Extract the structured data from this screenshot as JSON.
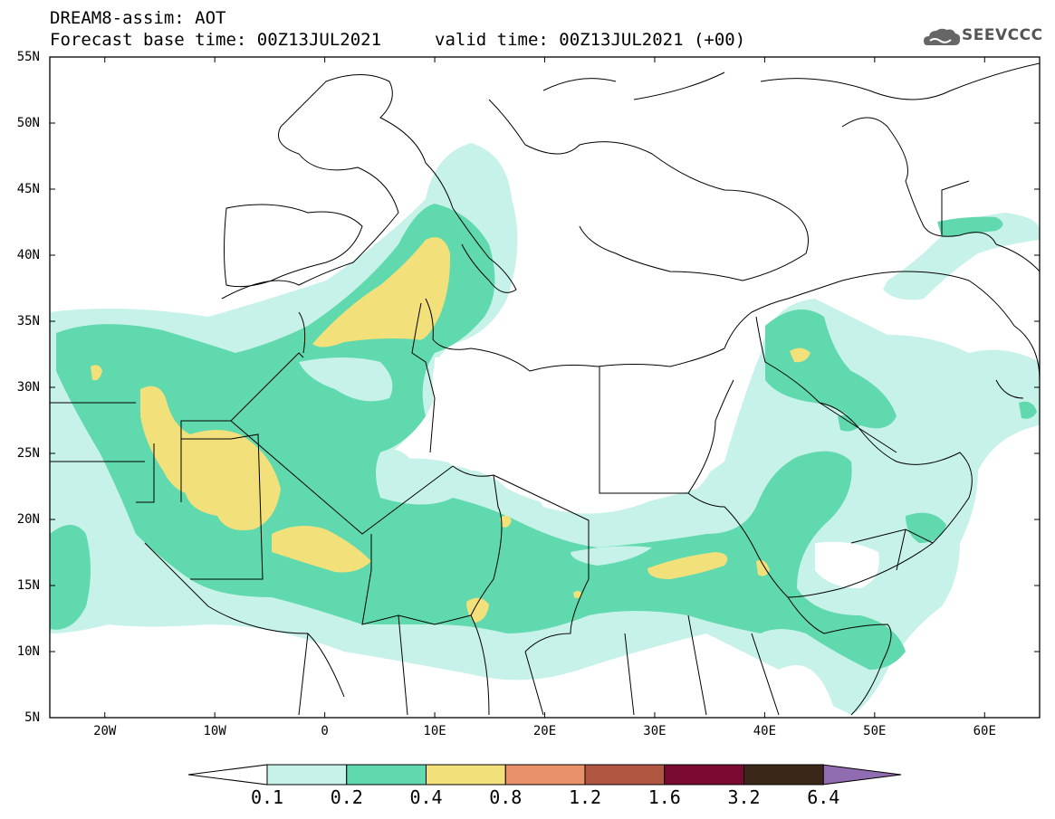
{
  "header": {
    "title": "DREAM8-assim: AOT",
    "forecast": "Forecast base time: 00Z13JUL2021",
    "valid": "valid time: 00Z13JUL2021 (+00)",
    "logo_text": "SEEVCCC"
  },
  "map": {
    "lon_range": [
      -25,
      65
    ],
    "lat_range": [
      5,
      55
    ],
    "lat_ticks": [
      "55N",
      "50N",
      "45N",
      "40N",
      "35N",
      "30N",
      "25N",
      "20N",
      "15N",
      "10N",
      "5N"
    ],
    "lon_ticks": [
      "20W",
      "10W",
      "0",
      "10E",
      "20E",
      "30E",
      "40E",
      "50E",
      "60E"
    ],
    "variable": "AOT"
  },
  "colorbar": {
    "levels": [
      "0.1",
      "0.2",
      "0.4",
      "0.8",
      "1.2",
      "1.6",
      "3.2",
      "6.4"
    ],
    "colors": [
      "#c7f2ea",
      "#5fd9ad",
      "#f2e07a",
      "#e9926a",
      "#b05540",
      "#7a0a32",
      "#3b2718",
      "#8f6db0"
    ]
  }
}
